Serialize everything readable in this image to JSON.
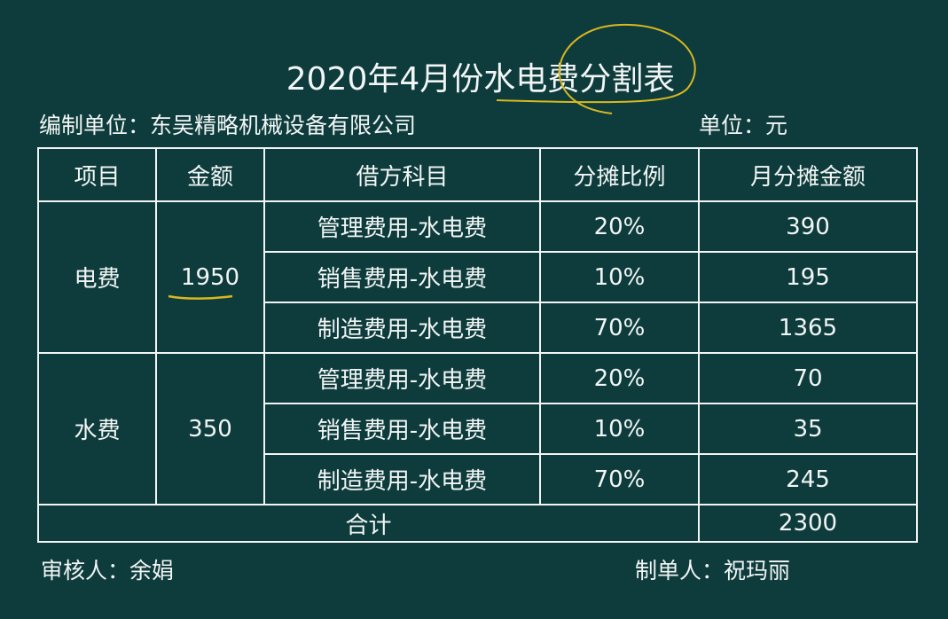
{
  "title": "2020年4月份水电费分割表",
  "org": "编制单位：东吴精略机械设备有限公司",
  "unit": "单位：元",
  "headers": [
    "项目",
    "金额",
    "借方科目",
    "分摊比例",
    "月分摊金额"
  ],
  "groups": [
    {
      "item": "电费",
      "amount": "1950",
      "rows": [
        {
          "account": "管理费用-水电费",
          "ratio": "20%",
          "value": "390"
        },
        {
          "account": "销售费用-水电费",
          "ratio": "10%",
          "value": "195"
        },
        {
          "account": "制造费用-水电费",
          "ratio": "70%",
          "value": "1365"
        }
      ]
    },
    {
      "item": "水费",
      "amount": "350",
      "rows": [
        {
          "account": "管理费用-水电费",
          "ratio": "20%",
          "value": "70"
        },
        {
          "account": "销售费用-水电费",
          "ratio": "10%",
          "value": "35"
        },
        {
          "account": "制造费用-水电费",
          "ratio": "70%",
          "value": "245"
        }
      ]
    }
  ],
  "total_label": "合计",
  "total_value": "2300",
  "reviewer": "审核人：余娟",
  "preparer": "制单人：祝玛丽",
  "colors": {
    "background": "#0e3c3c",
    "text": "#f2f5f5",
    "annotation": "#d8b820"
  }
}
